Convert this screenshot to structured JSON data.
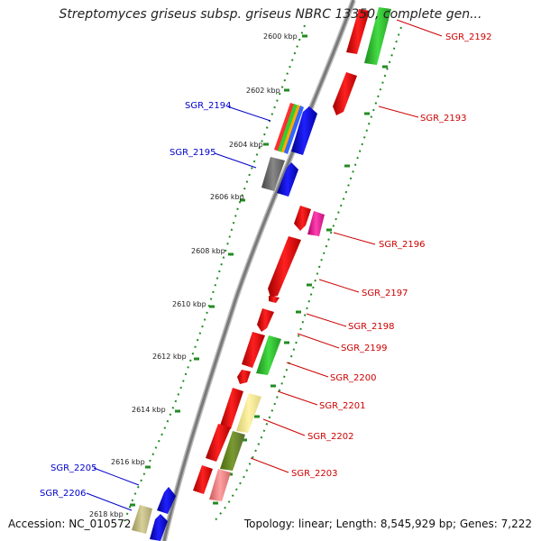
{
  "title": "Streptomyces griseus subsp. griseus NBRC 13350, complete gen...",
  "accession": "Accession: NC_010572",
  "topology": "Topology: linear; Length: 8,545,929 bp; Genes: 7,222",
  "colors": {
    "forward_label": "#cc0000",
    "reverse_label": "#0000cc",
    "red": "#ff0000",
    "blue": "#0000ff",
    "green": "#33cc33",
    "olive": "#6b8e23",
    "khaki": "#c8c08a",
    "yellow": "#f0e68c",
    "gray": "#666666",
    "pink": "#f08080",
    "magenta": "#ff1493",
    "axis": "#888888",
    "ticks": "#228b22"
  },
  "kbp_ticks": [
    "2600 kbp",
    "2602 kbp",
    "2604 kbp",
    "2606 kbp",
    "2608 kbp",
    "2610 kbp",
    "2612 kbp",
    "2614 kbp",
    "2616 kbp",
    "2618 kbp"
  ],
  "gene_labels": [
    {
      "name": "SGR_2192",
      "strand": "forward"
    },
    {
      "name": "SGR_2193",
      "strand": "forward"
    },
    {
      "name": "SGR_2194",
      "strand": "reverse"
    },
    {
      "name": "SGR_2195",
      "strand": "reverse"
    },
    {
      "name": "SGR_2196",
      "strand": "forward"
    },
    {
      "name": "SGR_2197",
      "strand": "forward"
    },
    {
      "name": "SGR_2198",
      "strand": "forward"
    },
    {
      "name": "SGR_2199",
      "strand": "forward"
    },
    {
      "name": "SGR_2200",
      "strand": "forward"
    },
    {
      "name": "SGR_2201",
      "strand": "forward"
    },
    {
      "name": "SGR_2202",
      "strand": "forward"
    },
    {
      "name": "SGR_2203",
      "strand": "forward"
    },
    {
      "name": "SGR_2205",
      "strand": "reverse"
    },
    {
      "name": "SGR_2206",
      "strand": "reverse"
    }
  ]
}
